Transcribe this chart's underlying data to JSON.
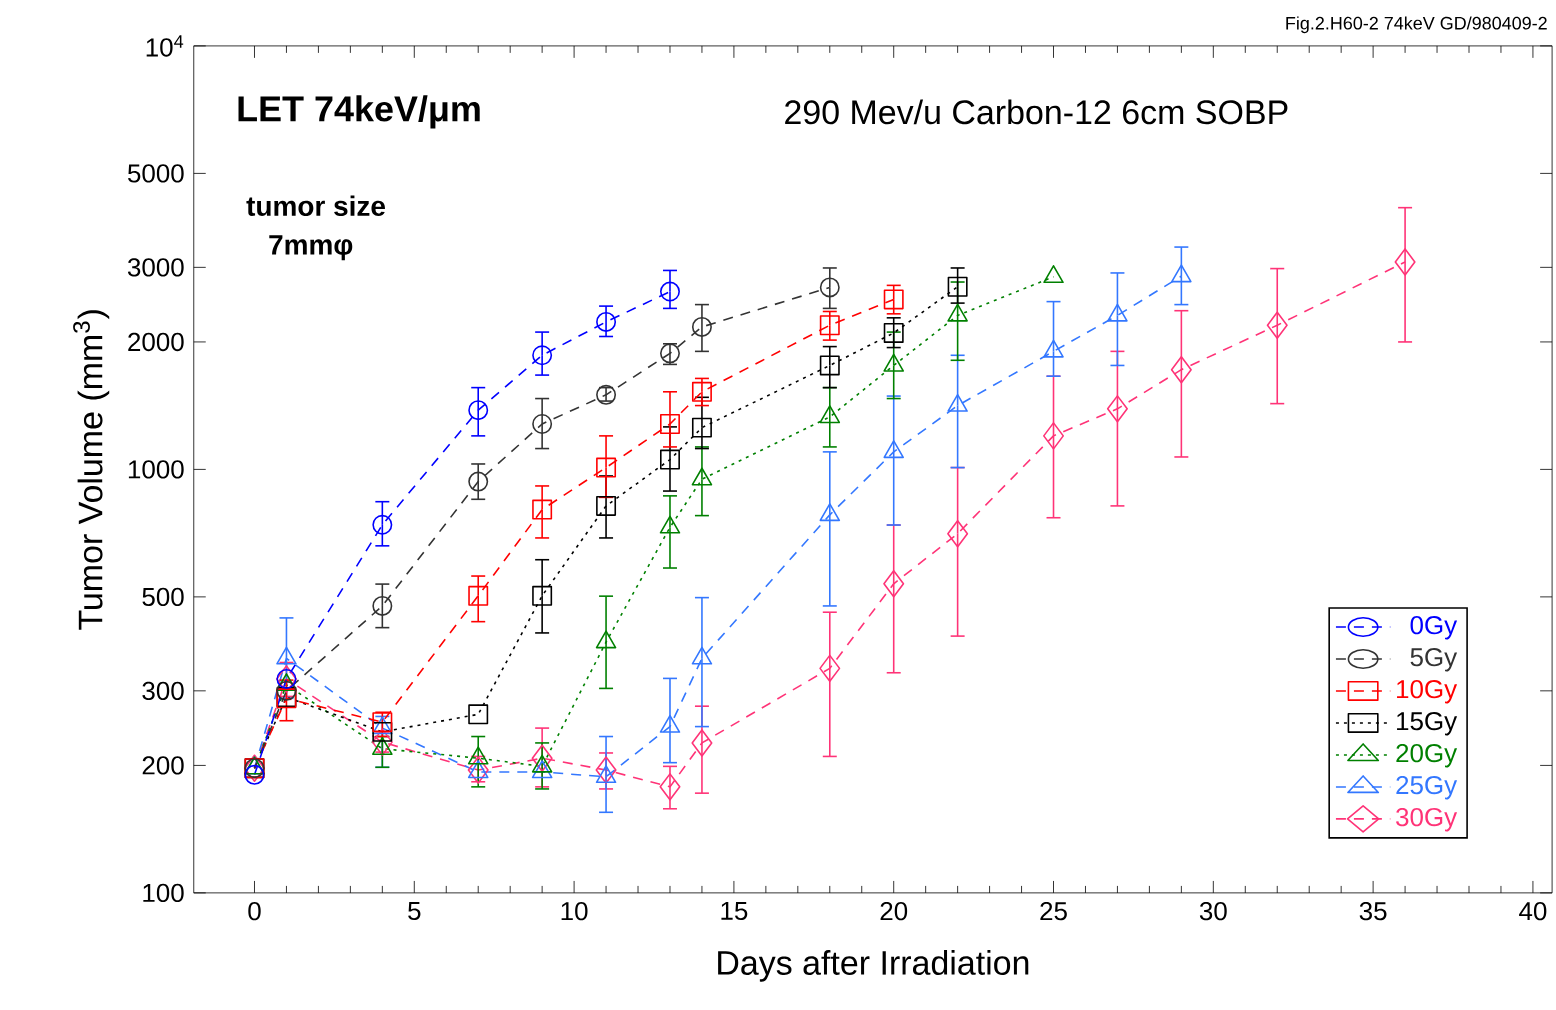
{
  "chart_data": {
    "type": "line",
    "xlabel": "Days after Irradiation",
    "ylabel": "Tumor Volume (mm$^{3}$)",
    "log": "y",
    "legend": "bottom right",
    "xlim": [
      -1.9,
      40.6
    ],
    "xticks": [
      0,
      5,
      10,
      15,
      20,
      25,
      30,
      35,
      40
    ],
    "ylim": [
      100,
      10000
    ],
    "yticks": [
      100,
      200,
      300,
      500,
      1000,
      2000,
      3000,
      5000,
      {
        "value": 10000,
        "label": "10$^{4}$"
      }
    ],
    "annotations": [
      "Fig.2.H60-2 74keV GD/980409-2",
      "LET 74keV/μm",
      "290 Mev/u Carbon-12 6cm SOBP",
      "tumor size",
      "7mmφ"
    ],
    "series": [
      {
        "name": "0Gy",
        "color": "#0000ff",
        "marker": "circle",
        "line_style": "dashed",
        "x": [
          0,
          1,
          4,
          7,
          9,
          11,
          13
        ],
        "values": [
          190,
          320,
          740,
          1380,
          1860,
          2230,
          2630
        ],
        "errors": [
          null,
          null,
          [
            660,
            839
          ],
          [
            1200,
            1560
          ],
          [
            1670,
            2110
          ],
          [
            2060,
            2430
          ],
          [
            2400,
            2950
          ]
        ]
      },
      {
        "name": "5Gy",
        "color": "#333333",
        "marker": "circle",
        "line_style": "dashed",
        "x": [
          0,
          1,
          4,
          7,
          9,
          11,
          13,
          14,
          18
        ],
        "values": [
          197,
          300,
          476,
          936,
          1280,
          1500,
          1880,
          2170,
          2690
        ],
        "errors": [
          null,
          null,
          [
            423,
            536
          ],
          [
            850,
            1030
          ],
          [
            1120,
            1470
          ],
          [
            1450,
            1560
          ],
          [
            1770,
            1980
          ],
          [
            1900,
            2450
          ],
          [
            2400,
            2990
          ]
        ]
      },
      {
        "name": "10Gy",
        "color": "#ff0000",
        "marker": "square",
        "line_style": "dashed",
        "x": [
          0,
          1,
          4,
          7,
          9,
          11,
          13,
          14,
          18,
          20
        ],
        "values": [
          197,
          288,
          253,
          503,
          804,
          1010,
          1280,
          1525,
          2190,
          2520
        ],
        "errors": [
          null,
          [
            255,
            318
          ],
          [
            234,
            267
          ],
          [
            437,
            560
          ],
          [
            689,
            914
          ],
          [
            859,
            1200
          ],
          [
            1130,
            1525
          ],
          [
            1415,
            1640
          ],
          [
            2020,
            2360
          ],
          [
            2330,
            2720
          ]
        ]
      },
      {
        "name": "15Gy",
        "color": "#000000",
        "marker": "square",
        "line_style": "dotted",
        "x": [
          0,
          1,
          4,
          7,
          9,
          11,
          13,
          14,
          18,
          20,
          22
        ],
        "values": [
          197,
          290,
          240,
          264,
          503,
          820,
          1055,
          1255,
          1760,
          2100,
          2700
        ],
        "errors": [
          null,
          null,
          null,
          null,
          [
            411,
            612
          ],
          [
            689,
            965
          ],
          [
            889,
            1260
          ],
          [
            1120,
            1480
          ],
          [
            1560,
            1950
          ],
          [
            1940,
            2280
          ],
          [
            2470,
            2990
          ]
        ]
      },
      {
        "name": "20Gy",
        "color": "#008000",
        "marker": "triangle",
        "line_style": "dotted",
        "x": [
          0,
          1,
          4,
          7,
          9,
          11,
          13,
          14,
          18,
          20,
          22,
          25
        ],
        "values": [
          197,
          310,
          219,
          208,
          199,
          391,
          730,
          948,
          1330,
          1760,
          2310,
          2850
        ],
        "errors": [
          null,
          null,
          [
            198,
            234
          ],
          [
            178,
            234
          ],
          [
            176,
            226
          ],
          [
            304,
            502
          ],
          [
            585,
            866
          ],
          [
            778,
            1130
          ],
          [
            1130,
            1560
          ],
          [
            1470,
            2110
          ],
          [
            1810,
            2770
          ],
          null
        ]
      },
      {
        "name": "25Gy",
        "color": "#3377ff",
        "marker": "triangle",
        "line_style": "dashed",
        "x": [
          0,
          1,
          4,
          7,
          9,
          11,
          13,
          14,
          18,
          20,
          22,
          25,
          27,
          29
        ],
        "values": [
          197,
          358,
          245,
          193,
          193,
          188,
          247,
          358,
          781,
          1100,
          1415,
          1900,
          2310,
          2860
        ],
        "errors": [
          null,
          [
            288,
            446
          ],
          [
            198,
            261
          ],
          null,
          null,
          [
            155,
            234
          ],
          [
            203,
            321
          ],
          [
            247,
            498
          ],
          [
            476,
            1100
          ],
          [
            739,
            1490
          ],
          [
            1010,
            1860
          ],
          [
            1660,
            2490
          ],
          [
            1760,
            2910
          ],
          [
            2450,
            3350
          ]
        ]
      },
      {
        "name": "30Gy",
        "color": "#ff3377",
        "marker": "diamond",
        "line_style": "dashed",
        "x": [
          0,
          1,
          4,
          7,
          9,
          11,
          13,
          14,
          18,
          20,
          22,
          25,
          27,
          29,
          32,
          36
        ],
        "values": [
          197,
          320,
          227,
          195,
          208,
          195,
          178,
          226,
          339,
          537,
          705,
          1200,
          1390,
          1720,
          2190,
          3090
        ],
        "errors": [
          null,
          [
            291,
            350
          ],
          [
            215,
            240
          ],
          [
            183,
            210
          ],
          [
            178,
            245
          ],
          [
            176,
            214
          ],
          [
            158,
            199
          ],
          [
            172,
            276
          ],
          [
            210,
            460
          ],
          [
            331,
            739
          ],
          [
            404,
            1010
          ],
          [
            769,
            1660
          ],
          [
            820,
            1900
          ],
          [
            1070,
            2370
          ],
          [
            1430,
            2980
          ],
          [
            2000,
            4150
          ]
        ]
      }
    ]
  }
}
